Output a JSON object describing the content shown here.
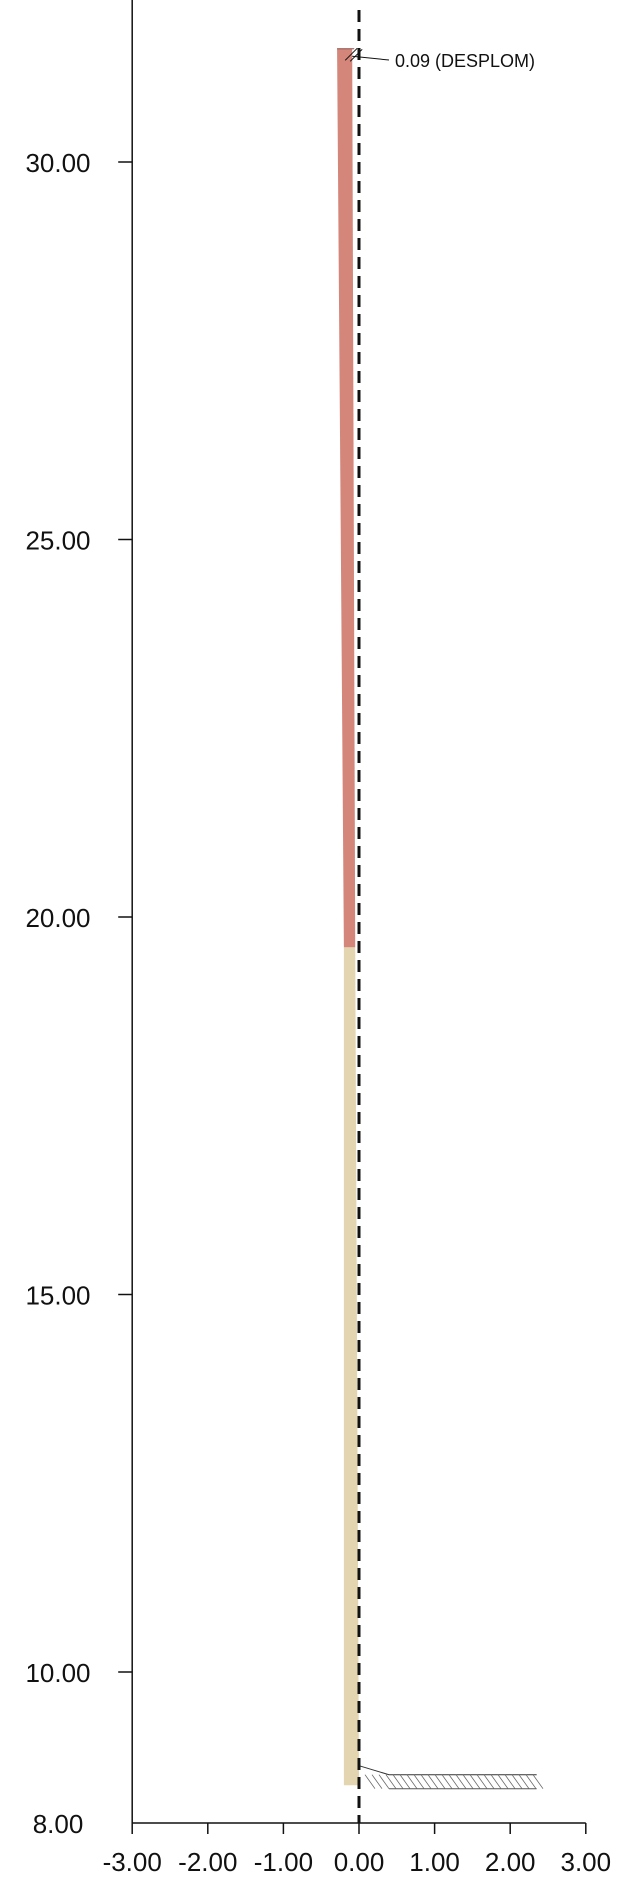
{
  "chart_data": {
    "type": "profile",
    "x_ticks": [
      "-3.00",
      "-2.00",
      "-1.00",
      "0.00",
      "1.00",
      "2.00",
      "3.00"
    ],
    "y_ticks": [
      "8.00",
      "10.00",
      "15.00",
      "20.00",
      "25.00",
      "30.00"
    ],
    "xlim": [
      -3,
      3
    ],
    "ylim": [
      8,
      32.2
    ],
    "reference_line": {
      "x": 0,
      "style": "dashed"
    },
    "segments": [
      {
        "name": "lower",
        "color": "#e3d5b0",
        "y_start": 8.5,
        "y_end": 19.6,
        "x_left_bottom": -0.2,
        "x_left_top": -0.2,
        "x_right_bottom": 0.0,
        "x_right_top": -0.05
      },
      {
        "name": "upper",
        "color": "#d4867a",
        "y_start": 19.6,
        "y_end": 31.5,
        "x_left_bottom": -0.2,
        "x_left_top": -0.29,
        "x_right_bottom": -0.05,
        "x_right_top": -0.09
      }
    ],
    "ground": {
      "y": 8.6,
      "x_start": 0.0,
      "x_end": 2.35
    },
    "annotation": {
      "text": "0.09 (DESPLOM)",
      "x": -0.09,
      "y": 31.4
    }
  }
}
